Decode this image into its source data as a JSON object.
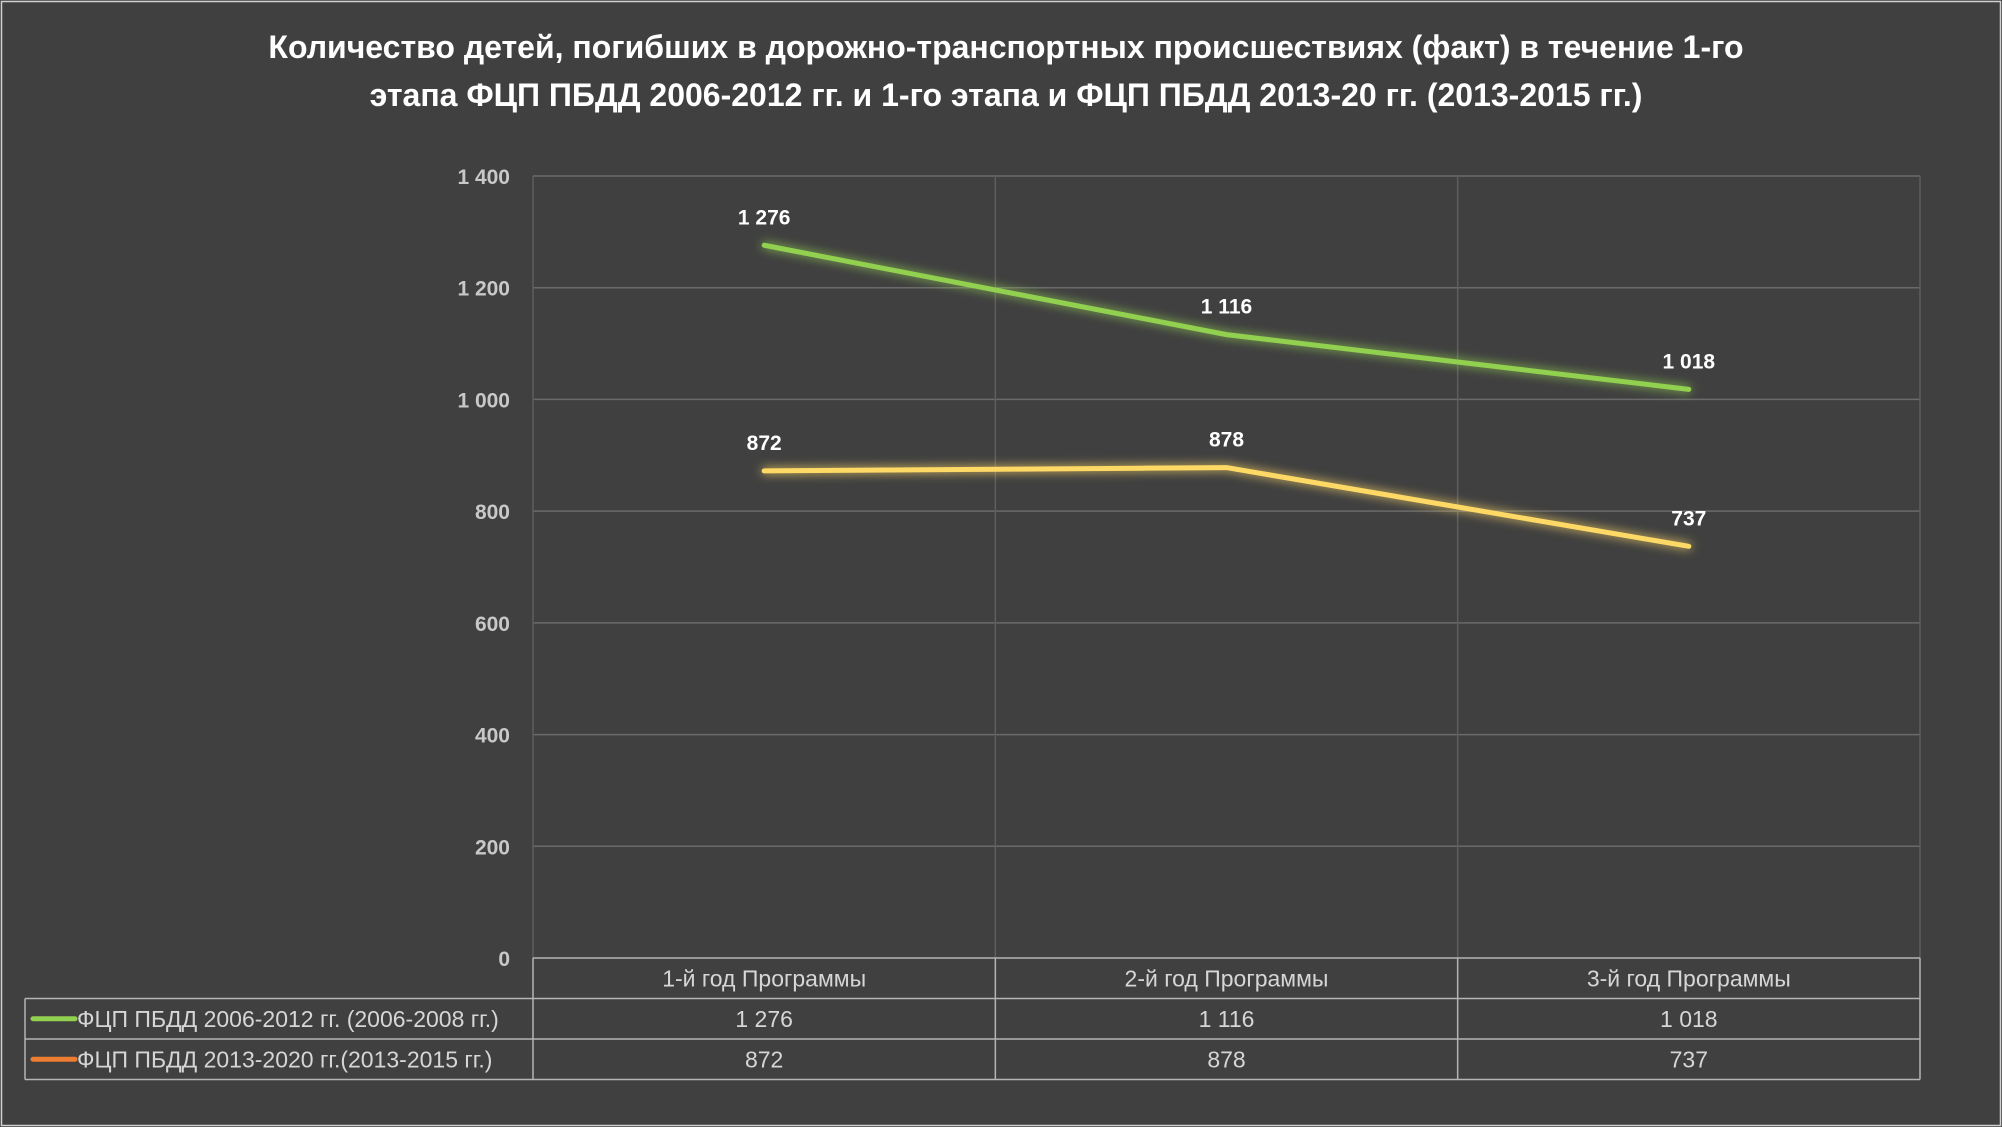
{
  "chart_data": {
    "type": "line",
    "title_lines": [
      "Количество детей, погибших в дорожно-транспортных происшествиях (факт) в течение 1-го",
      "этапа ФЦП ПБДД 2006-2012 гг. и 1-го этапа и ФЦП ПБДД 2013-20 гг. (2013-2015 гг.)"
    ],
    "categories": [
      "1-й год Программы",
      "2-й год Программы",
      "3-й год Программы"
    ],
    "ylim": [
      0,
      1400
    ],
    "y_ticks": [
      0,
      200,
      400,
      600,
      800,
      1000,
      1200,
      1400
    ],
    "y_tick_labels": [
      "0",
      "200",
      "400",
      "600",
      "800",
      "1 000",
      "1 200",
      "1 400"
    ],
    "grid": true,
    "legend_placement": "data table below plot",
    "series": [
      {
        "name": "ФЦП ПБДД 2006-2012 гг. (2006-2008 гг.)",
        "values": [
          1276,
          1116,
          1018
        ],
        "labels": [
          "1 276",
          "1 116",
          "1 018"
        ],
        "color": "#92D050",
        "legend_color": "#92D050"
      },
      {
        "name": "ФЦП ПБДД 2013-2020 гг.(2013-2015 гг.)",
        "values": [
          872,
          878,
          737
        ],
        "labels": [
          "872",
          "878",
          "737"
        ],
        "color": "#FFD966",
        "legend_color": "#ED7D31"
      }
    ]
  }
}
